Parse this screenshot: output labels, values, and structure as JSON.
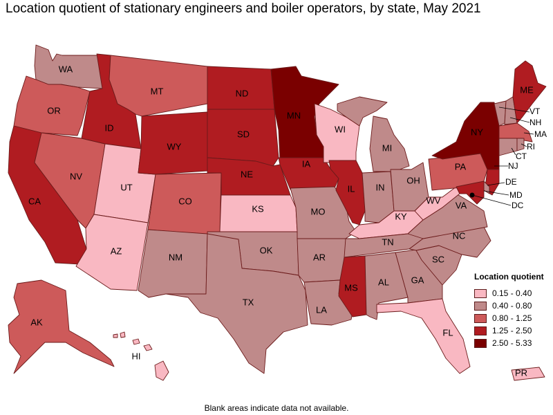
{
  "title": "Location quotient of stationary engineers and boiler operators, by state, May 2021",
  "footnote": "Blank areas indicate data not available.",
  "legend": {
    "title": "Location quotient",
    "items": [
      {
        "label": "0.15 - 0.40",
        "color": "#f9b8c2"
      },
      {
        "label": "0.40 - 0.80",
        "color": "#bf8a8a"
      },
      {
        "label": "0.80 - 1.25",
        "color": "#cd5a5a"
      },
      {
        "label": "1.25 - 2.50",
        "color": "#b01c21"
      },
      {
        "label": "2.50 - 5.33",
        "color": "#7a0000"
      }
    ]
  },
  "states": {
    "WA": "WA",
    "OR": "OR",
    "CA": "CA",
    "ID": "ID",
    "NV": "NV",
    "UT": "UT",
    "AZ": "AZ",
    "MT": "MT",
    "WY": "WY",
    "CO": "CO",
    "NM": "NM",
    "ND": "ND",
    "SD": "SD",
    "NE": "NE",
    "KS": "KS",
    "OK": "OK",
    "TX": "TX",
    "MN": "MN",
    "IA": "IA",
    "MO": "MO",
    "AR": "AR",
    "LA": "LA",
    "WI": "WI",
    "IL": "IL",
    "MS": "MS",
    "MI": "MI",
    "IN": "IN",
    "KY": "KY",
    "TN": "TN",
    "AL": "AL",
    "OH": "OH",
    "WV": "WV",
    "GA": "GA",
    "FL": "FL",
    "SC": "SC",
    "NC": "NC",
    "VA": "VA",
    "PA": "PA",
    "NY": "NY",
    "ME": "ME",
    "VT": "VT",
    "NH": "NH",
    "MA": "MA",
    "RI": "RI",
    "CT": "CT",
    "NJ": "NJ",
    "DE": "DE",
    "MD": "MD",
    "DC": "DC",
    "AK": "AK",
    "HI": "HI",
    "PR": "PR"
  }
}
